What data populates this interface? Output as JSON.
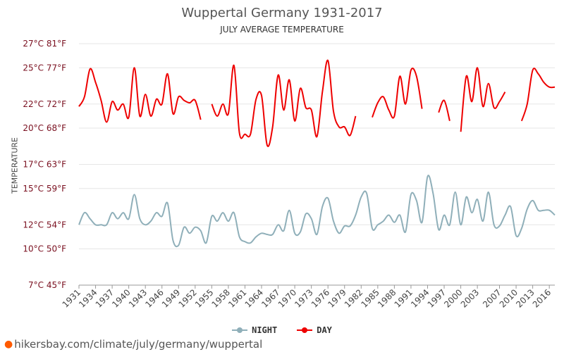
{
  "title": "Wuppertal Germany 1931-2017",
  "subtitle": "JULY AVERAGE TEMPERATURE",
  "source_text": "hikersbay.com/climate/july/germany/wuppertal",
  "chart_data": {
    "type": "line",
    "ylabel": "TEMPERATURE",
    "ylim": [
      7,
      27
    ],
    "y_ticks": [
      {
        "value": 7,
        "label": "7°C 45°F"
      },
      {
        "value": 10,
        "label": "10°C 50°F"
      },
      {
        "value": 12,
        "label": "12°C 54°F"
      },
      {
        "value": 15,
        "label": "15°C 59°F"
      },
      {
        "value": 17,
        "label": "17°C 63°F"
      },
      {
        "value": 20,
        "label": "20°C 68°F"
      },
      {
        "value": 22,
        "label": "22°C 72°F"
      },
      {
        "value": 25,
        "label": "25°C 77°F"
      },
      {
        "value": 27,
        "label": "27°C 81°F"
      }
    ],
    "x_range": [
      1931,
      2017
    ],
    "x_ticks": [
      1931,
      1934,
      1937,
      1940,
      1943,
      1946,
      1949,
      1952,
      1955,
      1958,
      1961,
      1964,
      1967,
      1970,
      1973,
      1976,
      1979,
      1982,
      1985,
      1988,
      1991,
      1994,
      1997,
      2000,
      2003,
      2007,
      2010,
      2013,
      2016
    ],
    "x": [
      1931,
      1932,
      1933,
      1934,
      1935,
      1936,
      1937,
      1938,
      1939,
      1940,
      1941,
      1942,
      1943,
      1944,
      1945,
      1946,
      1947,
      1948,
      1949,
      1950,
      1951,
      1952,
      1953,
      1954,
      1955,
      1956,
      1957,
      1958,
      1959,
      1960,
      1961,
      1962,
      1963,
      1964,
      1965,
      1966,
      1967,
      1968,
      1969,
      1970,
      1971,
      1972,
      1973,
      1974,
      1975,
      1976,
      1977,
      1978,
      1979,
      1980,
      1981,
      1982,
      1983,
      1984,
      1985,
      1986,
      1987,
      1988,
      1989,
      1990,
      1991,
      1992,
      1993,
      1994,
      1995,
      1996,
      1997,
      1998,
      1999,
      2000,
      2001,
      2002,
      2003,
      2004,
      2005,
      2006,
      2007,
      2008,
      2009,
      2010,
      2011,
      2012,
      2013,
      2014,
      2015,
      2016,
      2017
    ],
    "series": [
      {
        "name": "NIGHT",
        "color": "#8fafb9",
        "values": [
          12.0,
          13.0,
          12.5,
          12.0,
          12.0,
          12.0,
          13.0,
          12.5,
          13.0,
          12.5,
          14.5,
          12.5,
          12.0,
          12.3,
          13.0,
          12.7,
          13.8,
          10.7,
          10.3,
          11.8,
          11.3,
          11.8,
          11.5,
          10.5,
          12.7,
          12.3,
          13.0,
          12.3,
          13.0,
          11.0,
          10.6,
          10.5,
          11.0,
          11.3,
          11.2,
          11.2,
          12.0,
          11.5,
          13.2,
          11.3,
          11.4,
          12.9,
          12.5,
          11.2,
          13.5,
          14.2,
          12.3,
          11.3,
          11.9,
          11.9,
          12.8,
          14.3,
          14.6,
          11.7,
          12.0,
          12.3,
          12.8,
          12.2,
          12.8,
          11.4,
          14.5,
          14.0,
          12.2,
          16.0,
          14.6,
          11.6,
          12.8,
          12.0,
          14.7,
          12.0,
          14.3,
          13.0,
          14.1,
          12.3,
          14.7,
          12.0,
          11.9,
          12.8,
          13.5,
          11.1,
          11.7,
          13.3,
          14.0,
          13.2,
          13.2,
          13.2,
          12.8
        ]
      },
      {
        "name": "DAY",
        "color": "#ee0000",
        "values": [
          21.8,
          22.6,
          24.9,
          23.8,
          22.3,
          20.5,
          22.2,
          21.5,
          22.0,
          20.9,
          25.0,
          21.0,
          22.8,
          21.0,
          22.4,
          22.0,
          24.5,
          21.2,
          22.6,
          22.3,
          22.1,
          22.3,
          20.7,
          null,
          22.0,
          21.0,
          22.0,
          21.2,
          25.2,
          19.6,
          19.5,
          19.5,
          22.4,
          22.7,
          18.6,
          20.1,
          24.4,
          21.5,
          24.0,
          20.6,
          23.3,
          21.7,
          21.5,
          19.3,
          23.0,
          25.6,
          21.4,
          20.1,
          20.1,
          19.4,
          21.0,
          null,
          null,
          20.9,
          22.1,
          22.6,
          21.5,
          21.0,
          24.3,
          22.0,
          24.8,
          24.3,
          21.6,
          null,
          null,
          21.3,
          22.3,
          20.6,
          null,
          19.7,
          24.3,
          22.2,
          25.0,
          21.8,
          23.7,
          21.7,
          22.2,
          23.0,
          null,
          null,
          20.6,
          22.0,
          24.8,
          24.5,
          23.8,
          23.4,
          23.4
        ]
      }
    ],
    "legend": [
      "NIGHT",
      "DAY"
    ],
    "legend_position": "bottom-center",
    "grid": true
  }
}
